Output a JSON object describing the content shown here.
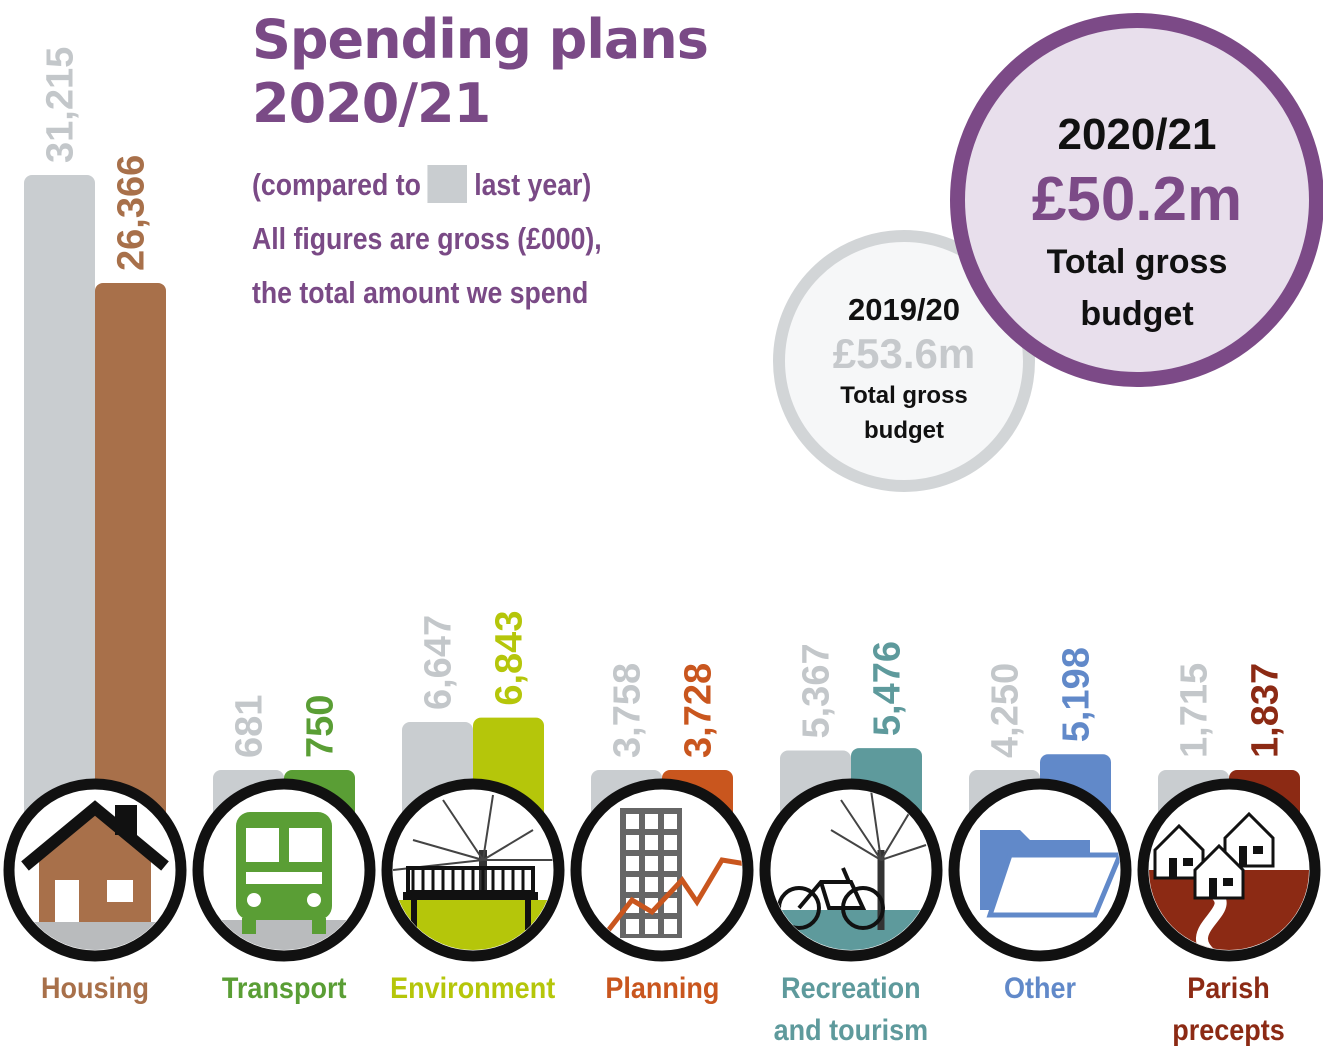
{
  "title_line1": "Spending plans",
  "title_line2": "2020/21",
  "subtitle": {
    "compared_prefix": "(compared to",
    "compared_suffix": "last year)",
    "line2": "All figures are gross (£000),",
    "line3": "the total amount we spend"
  },
  "current_budget": {
    "year": "2020/21",
    "amount": "£50.2m",
    "label_line1": "Total gross",
    "label_line2": "budget"
  },
  "previous_budget": {
    "year": "2019/20",
    "amount": "£53.6m",
    "label_line1": "Total gross",
    "label_line2": "budget"
  },
  "colors": {
    "previous": "#c9cdd0",
    "previous_label": "#c3c7ca",
    "title": "#7a4a86",
    "housing": "#a8704a",
    "transport": "#5a9e35",
    "environment": "#b5c60a",
    "planning": "#c9561e",
    "recreation": "#5e9a9c",
    "other": "#6189c9",
    "parish": "#8c2a14"
  },
  "chart_data": {
    "type": "bar",
    "categories": [
      "Housing",
      "Transport",
      "Environment",
      "Planning",
      "Recreation\nand tourism",
      "Other",
      "Parish\nprecepts"
    ],
    "category_colors": [
      "#a8704a",
      "#5a9e35",
      "#b5c60a",
      "#c9561e",
      "#5e9a9c",
      "#6189c9",
      "#8c2a14"
    ],
    "icons": [
      "house-icon",
      "bus-icon",
      "park-bench-icon",
      "building-growth-icon",
      "bicycle-tree-icon",
      "folder-icon",
      "houses-road-icon"
    ],
    "series": [
      {
        "name": "last year",
        "values": [
          31215,
          681,
          6647,
          3758,
          5367,
          4250,
          1715
        ],
        "labels": [
          "31,215",
          "681",
          "6,647",
          "3,758",
          "5,367",
          "4,250",
          "1,715"
        ]
      },
      {
        "values": [
          26366,
          750,
          6843,
          3728,
          5476,
          5198,
          1837
        ],
        "labels": [
          "26,366",
          "750",
          "6,843",
          "3,728",
          "5,476",
          "5,198",
          "1,837"
        ]
      }
    ],
    "ylim": [
      0,
      31215
    ]
  }
}
